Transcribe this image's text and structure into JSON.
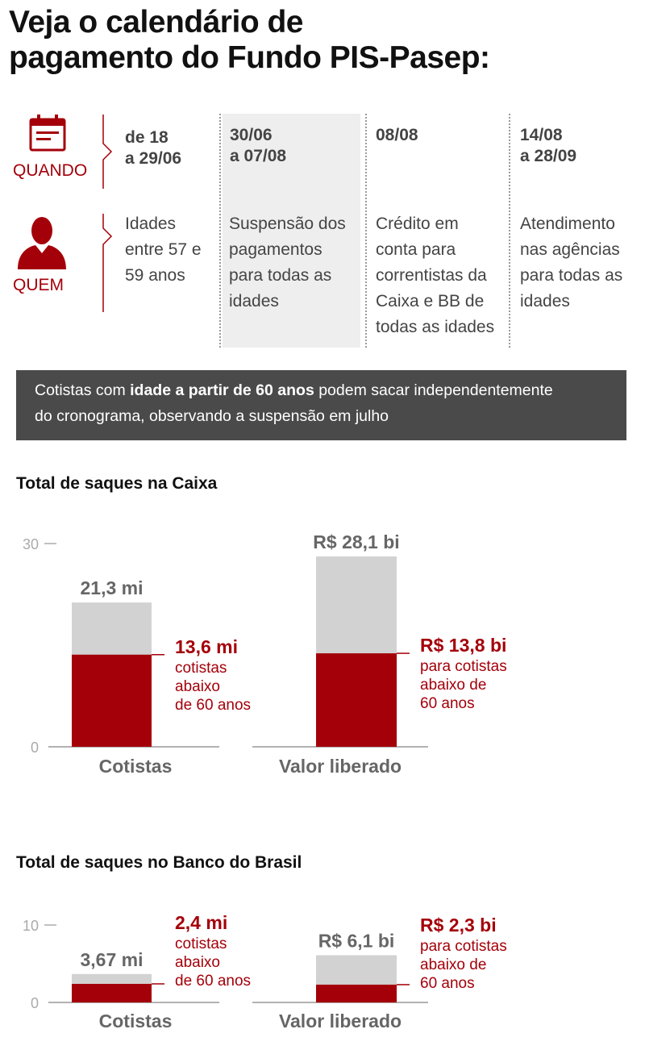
{
  "title": {
    "line1": "Veja o calendário de",
    "line2": "pagamento do Fundo PIS-Pasep:"
  },
  "calendar": {
    "row_labels": {
      "when": "QUANDO",
      "who": "QUEM"
    },
    "columns": [
      {
        "date": [
          "de 18",
          "a 29/06"
        ],
        "who": [
          "Idades",
          "entre 57 e",
          "59 anos"
        ],
        "highlight": false
      },
      {
        "date": [
          "30/06",
          "a 07/08"
        ],
        "who": [
          "Suspensão dos",
          "pagamentos",
          "para todas as",
          "idades"
        ],
        "highlight": true
      },
      {
        "date": [
          "08/08"
        ],
        "who": [
          "Crédito em",
          "conta para",
          "correntistas da",
          "Caixa e BB de",
          "todas as idades"
        ],
        "highlight": false
      },
      {
        "date": [
          "14/08",
          "a 28/09"
        ],
        "who": [
          "Atendimento",
          "nas agências",
          "para todas as",
          "idades"
        ],
        "highlight": false
      }
    ]
  },
  "note": {
    "part1": "Cotistas com ",
    "bold": "idade a partir de 60 anos",
    "part2": " podem sacar independentemente",
    "line2": "do cronograma, observando a suspensão em julho"
  },
  "colors": {
    "accent": "#a4000a",
    "total_bar": "#d2d2d2",
    "note_bg": "#4a4a4a"
  },
  "chart_data": [
    {
      "type": "bar",
      "title": "Total de saques na Caixa",
      "ylim": [
        0,
        30
      ],
      "yticks": [
        "0",
        "30"
      ],
      "categories": [
        "Cotistas",
        "Valor liberado"
      ],
      "series": [
        {
          "name": "Total",
          "values": [
            21.3,
            28.1
          ],
          "labels": [
            "21,3 mi",
            "R$ 28,1 bi"
          ]
        },
        {
          "name": "abaixo de 60 anos",
          "values": [
            13.6,
            13.8
          ],
          "labels": [
            "13,6 mi",
            "R$ 13,8 bi"
          ],
          "desc": [
            [
              "cotistas",
              "abaixo",
              "de 60 anos"
            ],
            [
              "para cotistas",
              "abaixo de",
              "60 anos"
            ]
          ]
        }
      ]
    },
    {
      "type": "bar",
      "title": "Total de saques no Banco do Brasil",
      "ylim": [
        0,
        10
      ],
      "yticks": [
        "0",
        "10"
      ],
      "categories": [
        "Cotistas",
        "Valor liberado"
      ],
      "series": [
        {
          "name": "Total",
          "values": [
            3.67,
            6.1
          ],
          "labels": [
            "3,67 mi",
            "R$ 6,1 bi"
          ]
        },
        {
          "name": "abaixo de 60 anos",
          "values": [
            2.4,
            2.3
          ],
          "labels": [
            "2,4 mi",
            "R$ 2,3 bi"
          ],
          "desc": [
            [
              "cotistas",
              "abaixo",
              "de 60 anos"
            ],
            [
              "para cotistas",
              "abaixo de",
              "60 anos"
            ]
          ]
        }
      ]
    }
  ]
}
